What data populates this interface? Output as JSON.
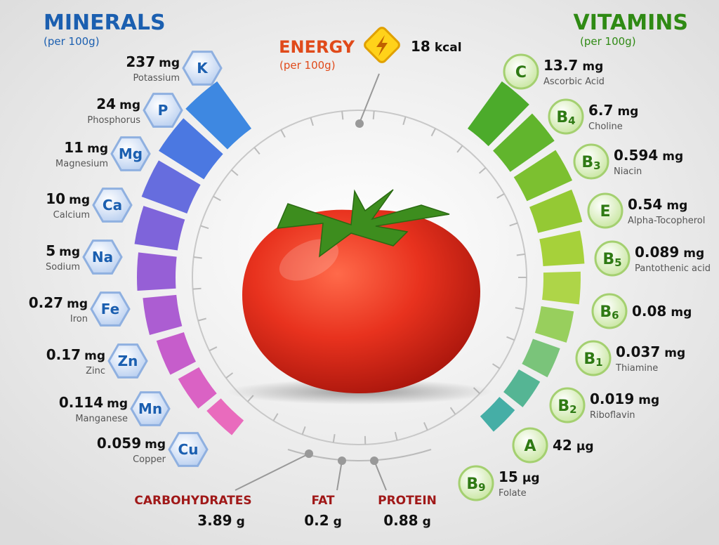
{
  "header": {
    "minerals": {
      "title": "MINERALS",
      "subtitle": "(per 100g)"
    },
    "vitamins": {
      "title": "VITAMINS",
      "subtitle": "(per 100g)"
    },
    "energy": {
      "title": "ENERGY",
      "subtitle": "(per 100g)",
      "value": 18,
      "unit": "kcal"
    }
  },
  "minerals": [
    {
      "symbol": "K",
      "value": 237,
      "unit": "mg",
      "name": "Potassium"
    },
    {
      "symbol": "P",
      "value": 24,
      "unit": "mg",
      "name": "Phosphorus"
    },
    {
      "symbol": "Mg",
      "value": 11,
      "unit": "mg",
      "name": "Magnesium"
    },
    {
      "symbol": "Ca",
      "value": 10,
      "unit": "mg",
      "name": "Calcium"
    },
    {
      "symbol": "Na",
      "value": 5,
      "unit": "mg",
      "name": "Sodium"
    },
    {
      "symbol": "Fe",
      "value": 0.27,
      "unit": "mg",
      "name": "Iron"
    },
    {
      "symbol": "Zn",
      "value": 0.17,
      "unit": "mg",
      "name": "Zinc"
    },
    {
      "symbol": "Mn",
      "value": 0.114,
      "unit": "mg",
      "name": "Manganese"
    },
    {
      "symbol": "Cu",
      "value": 0.059,
      "unit": "mg",
      "name": "Copper"
    }
  ],
  "vitamins": [
    {
      "symbol": "C",
      "value": 13.7,
      "unit": "mg",
      "name": "Ascorbic Acid"
    },
    {
      "symbol": "B",
      "sub": "4",
      "value": 6.7,
      "unit": "mg",
      "name": "Choline"
    },
    {
      "symbol": "B",
      "sub": "3",
      "value": 0.594,
      "unit": "mg",
      "name": "Niacin"
    },
    {
      "symbol": "E",
      "value": 0.54,
      "unit": "mg",
      "name": "Alpha-Tocopherol"
    },
    {
      "symbol": "B",
      "sub": "5",
      "value": 0.089,
      "unit": "mg",
      "name": "Pantothenic acid"
    },
    {
      "symbol": "B",
      "sub": "6",
      "value": 0.08,
      "unit": "mg"
    },
    {
      "symbol": "B",
      "sub": "1",
      "value": 0.037,
      "unit": "mg",
      "name": "Thiamine"
    },
    {
      "symbol": "B",
      "sub": "2",
      "value": 0.019,
      "unit": "mg",
      "name": "Riboflavin"
    },
    {
      "symbol": "A",
      "value": 42,
      "unit": "µg"
    },
    {
      "symbol": "B",
      "sub": "9",
      "value": 15,
      "unit": "µg",
      "name": "Folate"
    }
  ],
  "macros": [
    {
      "name": "CARBOHYDRATES",
      "value": 3.89,
      "unit": "g"
    },
    {
      "name": "FAT",
      "value": 0.2,
      "unit": "g"
    },
    {
      "name": "PROTEIN",
      "value": 0.88,
      "unit": "g"
    }
  ]
}
